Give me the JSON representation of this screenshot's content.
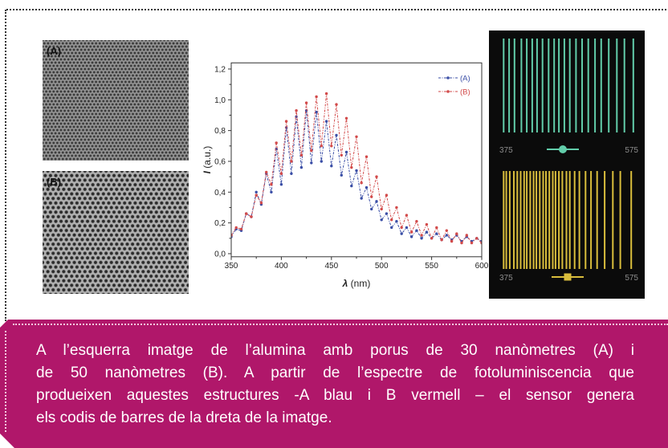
{
  "colors": {
    "caption_background": "#b0176a",
    "caption_text": "#ffffff"
  },
  "figure": {
    "sem_images": [
      {
        "label": "(A)"
      },
      {
        "label": "(B)"
      }
    ],
    "barcodes": [
      {
        "color": "#62cdaa",
        "marker": "circle",
        "range_labels": [
          "375",
          "575"
        ],
        "lines_nm": [
          380,
          388,
          396,
          406,
          414,
          422,
          429,
          437,
          446,
          454,
          461,
          469,
          477,
          486,
          495,
          504,
          514,
          523,
          534,
          546,
          557,
          570
        ]
      },
      {
        "color": "#d9bd3c",
        "marker": "square",
        "range_labels": [
          "375",
          "575"
        ],
        "lines_nm": [
          380,
          384,
          389,
          395,
          400,
          405,
          410,
          414,
          419,
          424,
          428,
          433,
          438,
          442,
          447,
          452,
          456,
          461,
          466,
          472,
          477,
          484,
          491,
          500,
          508,
          517,
          528,
          540,
          551,
          567
        ]
      }
    ]
  },
  "chart_data": {
    "type": "line",
    "xlabel": "λ (nm)",
    "ylabel": "I (a.u.)",
    "xlim": [
      350,
      600
    ],
    "ylim": [
      -0.02,
      1.24
    ],
    "xticks": [
      350,
      400,
      450,
      500,
      550,
      600
    ],
    "xtick_labels": [
      "350",
      "400",
      "450",
      "500",
      "550",
      "600"
    ],
    "yticks": [
      0.0,
      0.2,
      0.4,
      0.6,
      0.8,
      1.0,
      1.2
    ],
    "ytick_labels": [
      "0,0",
      "0,2",
      "0,4",
      "0,6",
      "0,8",
      "1,0",
      "1,2"
    ],
    "grid": false,
    "legend_position": "top-right",
    "x": [
      350,
      355,
      360,
      365,
      370,
      375,
      380,
      385,
      390,
      395,
      400,
      405,
      410,
      415,
      420,
      425,
      430,
      435,
      440,
      445,
      450,
      455,
      460,
      465,
      470,
      475,
      480,
      485,
      490,
      495,
      500,
      505,
      510,
      515,
      520,
      525,
      530,
      535,
      540,
      545,
      550,
      555,
      560,
      565,
      570,
      575,
      580,
      585,
      590,
      595,
      600
    ],
    "series": [
      {
        "name": "(A)",
        "color": "#3a4ea6",
        "values": [
          0.11,
          0.16,
          0.15,
          0.26,
          0.24,
          0.4,
          0.32,
          0.52,
          0.4,
          0.68,
          0.45,
          0.82,
          0.52,
          0.89,
          0.56,
          0.93,
          0.59,
          0.92,
          0.6,
          0.86,
          0.57,
          0.77,
          0.51,
          0.66,
          0.44,
          0.54,
          0.36,
          0.43,
          0.29,
          0.34,
          0.22,
          0.26,
          0.17,
          0.21,
          0.13,
          0.17,
          0.11,
          0.15,
          0.1,
          0.14,
          0.1,
          0.13,
          0.09,
          0.12,
          0.09,
          0.12,
          0.08,
          0.11,
          0.08,
          0.1,
          0.08
        ]
      },
      {
        "name": "(B)",
        "color": "#d24a4a",
        "values": [
          0.12,
          0.17,
          0.16,
          0.26,
          0.24,
          0.38,
          0.33,
          0.53,
          0.45,
          0.72,
          0.52,
          0.86,
          0.6,
          0.93,
          0.64,
          0.98,
          0.67,
          1.02,
          0.7,
          1.04,
          0.7,
          0.97,
          0.64,
          0.88,
          0.56,
          0.76,
          0.46,
          0.63,
          0.37,
          0.5,
          0.29,
          0.38,
          0.22,
          0.3,
          0.17,
          0.25,
          0.14,
          0.21,
          0.12,
          0.19,
          0.1,
          0.17,
          0.09,
          0.15,
          0.08,
          0.13,
          0.07,
          0.12,
          0.07,
          0.1,
          0.07
        ]
      }
    ]
  },
  "caption": {
    "lines": [
      "A l’esquerra imatge de l’alumina amb porus de 30 nanòmetres (A) i",
      "de 50 nanòmetres (B). A partir de l’espectre de fotoluminiscencia que",
      "produeixen aquestes estructures -A blau i B vermell – el sensor  genera",
      "els codis de barres de la dreta de la imatge."
    ]
  }
}
